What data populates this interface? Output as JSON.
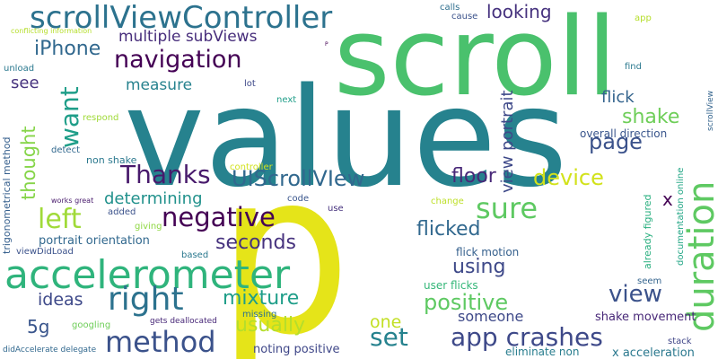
{
  "words": [
    {
      "text": "p",
      "color": "#e5e419"
    },
    {
      "text": "values",
      "color": "#26828e"
    },
    {
      "text": "scroll",
      "color": "#4ac16d"
    },
    {
      "text": "accelerometer",
      "color": "#2fb47c"
    },
    {
      "text": "scrollViewController",
      "color": "#2c728e"
    },
    {
      "text": "method",
      "color": "#3b528b"
    },
    {
      "text": "duration",
      "color": "#5ec962"
    },
    {
      "text": "right",
      "color": "#2c728e"
    },
    {
      "text": "negative",
      "color": "#440154"
    },
    {
      "text": "Thanks",
      "color": "#481a6c"
    },
    {
      "text": "left",
      "color": "#a0da39"
    },
    {
      "text": "navigation",
      "color": "#440154"
    },
    {
      "text": "sure",
      "color": "#5ec962"
    },
    {
      "text": "app crashes",
      "color": "#3e4989"
    },
    {
      "text": "UIScrollVIew",
      "color": "#31688e"
    },
    {
      "text": "device",
      "color": "#d2e21b"
    },
    {
      "text": "view",
      "color": "#3b528b"
    },
    {
      "text": "want",
      "color": "#1f9e89"
    },
    {
      "text": "set",
      "color": "#26828e"
    },
    {
      "text": "page",
      "color": "#3b528b"
    },
    {
      "text": "iPhone",
      "color": "#31688e"
    },
    {
      "text": "floor",
      "color": "#482878"
    },
    {
      "text": "view portrait",
      "color": "#3e4989"
    },
    {
      "text": "looking",
      "color": "#46327e"
    },
    {
      "text": "shake",
      "color": "#6ece58"
    },
    {
      "text": "positive",
      "color": "#5ec962"
    },
    {
      "text": "flicked",
      "color": "#31688e"
    },
    {
      "text": "mixture",
      "color": "#1f9e89"
    },
    {
      "text": "seconds",
      "color": "#46327e"
    },
    {
      "text": "usually",
      "color": "#b5de2b"
    },
    {
      "text": "using",
      "color": "#3e4989"
    },
    {
      "text": "thought",
      "color": "#86d549"
    },
    {
      "text": "multiple subViews",
      "color": "#472d7b"
    },
    {
      "text": "flick",
      "color": "#33638d"
    },
    {
      "text": "see",
      "color": "#46327e"
    },
    {
      "text": "measure",
      "color": "#26828e"
    },
    {
      "text": "determining",
      "color": "#21918c"
    },
    {
      "text": "ideas",
      "color": "#3e4989"
    },
    {
      "text": "5g",
      "color": "#39558c"
    },
    {
      "text": "someone",
      "color": "#3e4989"
    },
    {
      "text": "one",
      "color": "#c2df23"
    },
    {
      "text": "x",
      "color": "#440154"
    },
    {
      "text": "portrait orientation",
      "color": "#31688e"
    },
    {
      "text": "overall direction",
      "color": "#39558c"
    },
    {
      "text": "flick motion",
      "color": "#35608d"
    },
    {
      "text": "shake movement",
      "color": "#482878"
    },
    {
      "text": "x acceleration",
      "color": "#2a788e"
    },
    {
      "text": "already figured",
      "color": "#29af7f"
    },
    {
      "text": "documentation online",
      "color": "#21a685"
    },
    {
      "text": "user flicks",
      "color": "#35b779"
    },
    {
      "text": "noting positive",
      "color": "#3f4788"
    },
    {
      "text": "eliminate non",
      "color": "#287d8e"
    },
    {
      "text": "trigonometrical method",
      "color": "#355f8d"
    },
    {
      "text": "non shake",
      "color": "#2a788e"
    },
    {
      "text": "calls",
      "color": "#2e6e8e"
    },
    {
      "text": "cause",
      "color": "#3b528b"
    },
    {
      "text": "app",
      "color": "#b5de2b"
    },
    {
      "text": "find",
      "color": "#2a788e"
    },
    {
      "text": "scrollView",
      "color": "#33638d"
    },
    {
      "text": "next",
      "color": "#1f9e89"
    },
    {
      "text": "lot",
      "color": "#3e4989"
    },
    {
      "text": "respond",
      "color": "#a0da39"
    },
    {
      "text": "detect",
      "color": "#31688e"
    },
    {
      "text": "controller",
      "color": "#d2e21b"
    },
    {
      "text": "code",
      "color": "#39558c"
    },
    {
      "text": "use",
      "color": "#46327e"
    },
    {
      "text": "change",
      "color": "#bddf26"
    },
    {
      "text": "works great",
      "color": "#481a6c"
    },
    {
      "text": "added",
      "color": "#3b528b"
    },
    {
      "text": "giving",
      "color": "#8fd744"
    },
    {
      "text": "viewDidLoad",
      "color": "#3b528b"
    },
    {
      "text": "based",
      "color": "#2a788e"
    },
    {
      "text": "googling",
      "color": "#6ece58"
    },
    {
      "text": "missing",
      "color": "#2c728e"
    },
    {
      "text": "gets deallocated",
      "color": "#482878"
    },
    {
      "text": "seem",
      "color": "#33638d"
    },
    {
      "text": "stack",
      "color": "#404688"
    },
    {
      "text": "didAccelerate delegate",
      "color": "#31688e"
    },
    {
      "text": "unload",
      "color": "#2a788e"
    },
    {
      "text": "conflicting information",
      "color": "#b5de2b"
    },
    {
      "text": "P",
      "color": "#440154"
    }
  ]
}
